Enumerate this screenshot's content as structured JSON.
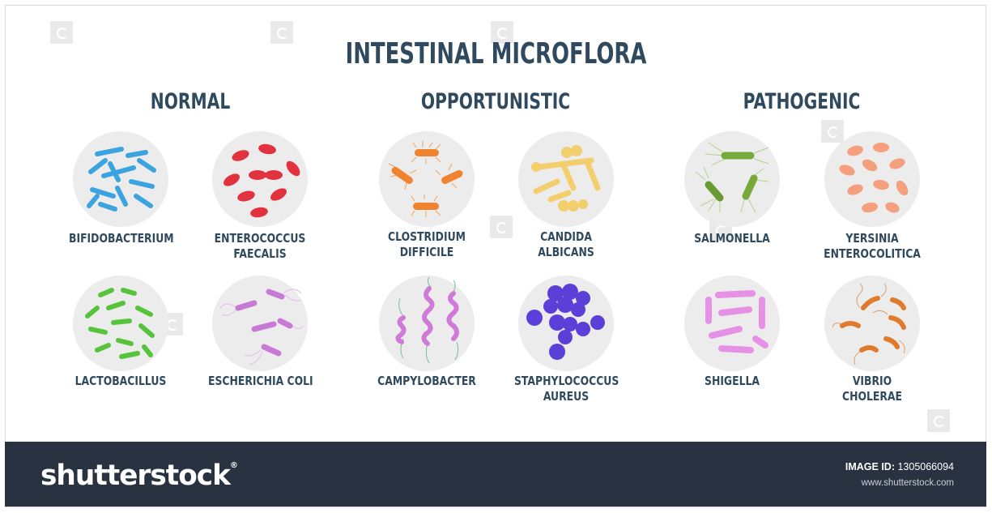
{
  "title": "INTESTINAL MICROFLORA",
  "groups": [
    {
      "name": "NORMAL",
      "items": [
        {
          "name": [
            "BIFIDOBACTERIUM"
          ],
          "color": "#3ba3e0"
        },
        {
          "name": [
            "ENTEROCOCCUS",
            "FAECALIS"
          ],
          "color": "#e2323f"
        },
        {
          "name": [
            "LACTOBACILLUS"
          ],
          "color": "#56c43a"
        },
        {
          "name": [
            "ESCHERICHIA COLI"
          ],
          "color": "#c77ad4"
        }
      ]
    },
    {
      "name": "OPPORTUNISTIC",
      "items": [
        {
          "name": [
            "CLOSTRIDIUM",
            "DIFFICILE"
          ],
          "color": "#f0832e"
        },
        {
          "name": [
            "CANDIDA",
            "ALBICANS"
          ],
          "color": "#f2cf6c"
        },
        {
          "name": [
            "CAMPYLOBACTER"
          ],
          "color": "#d07ad8"
        },
        {
          "name": [
            "STAPHYLOCOCCUS",
            "AUREUS"
          ],
          "color": "#5b3fd9"
        }
      ]
    },
    {
      "name": "PATHOGENIC",
      "items": [
        {
          "name": [
            "SALMONELLA"
          ],
          "color": "#79a93a"
        },
        {
          "name": [
            "YERSINIA",
            "ENTEROCOLITICA"
          ],
          "color": "#f4a07e"
        },
        {
          "name": [
            "SHIGELLA"
          ],
          "color": "#e691e6"
        },
        {
          "name": [
            "VIBRIO",
            "CHOLERAE"
          ],
          "color": "#e07a2c"
        }
      ]
    }
  ],
  "footer": {
    "logo": "shutterstock",
    "logo_mark": "®",
    "image_id_label": "IMAGE ID:",
    "image_id": "1305066094",
    "site": "www.shutterstock.com"
  },
  "colors": {
    "heading": "#2f4a5e",
    "footer_bg": "#293240",
    "circle_bg": "#ececec"
  }
}
